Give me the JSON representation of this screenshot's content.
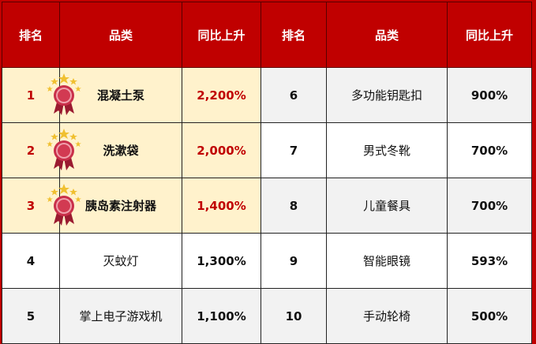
{
  "headers": [
    "排名",
    "品类",
    "同比上升",
    "排名",
    "品类",
    "同比上升"
  ],
  "colors": {
    "header_bg": "#c00000",
    "top3_bg": "#fff2cc",
    "top3_text": "#c00000",
    "stripe": "#f2f2f2"
  },
  "rows": [
    {
      "left": {
        "rank": "1",
        "category": "混凝土泵",
        "growth": "2,200%",
        "medal": "medal-icon"
      },
      "right": {
        "rank": "6",
        "category": "多功能钥匙扣",
        "growth": "900%"
      }
    },
    {
      "left": {
        "rank": "2",
        "category": "洗漱袋",
        "growth": "2,000%",
        "medal": "medal-icon"
      },
      "right": {
        "rank": "7",
        "category": "男式冬靴",
        "growth": "700%"
      }
    },
    {
      "left": {
        "rank": "3",
        "category": "胰岛素注射器",
        "growth": "1,400%",
        "medal": "medal-icon"
      },
      "right": {
        "rank": "8",
        "category": "儿童餐具",
        "growth": "700%"
      }
    },
    {
      "left": {
        "rank": "4",
        "category": "灭蚊灯",
        "growth": "1,300%"
      },
      "right": {
        "rank": "9",
        "category": "智能眼镜",
        "growth": "593%"
      }
    },
    {
      "left": {
        "rank": "5",
        "category": "掌上电子游戏机",
        "growth": "1,100%"
      },
      "right": {
        "rank": "10",
        "category": "手动轮椅",
        "growth": "500%"
      }
    }
  ]
}
